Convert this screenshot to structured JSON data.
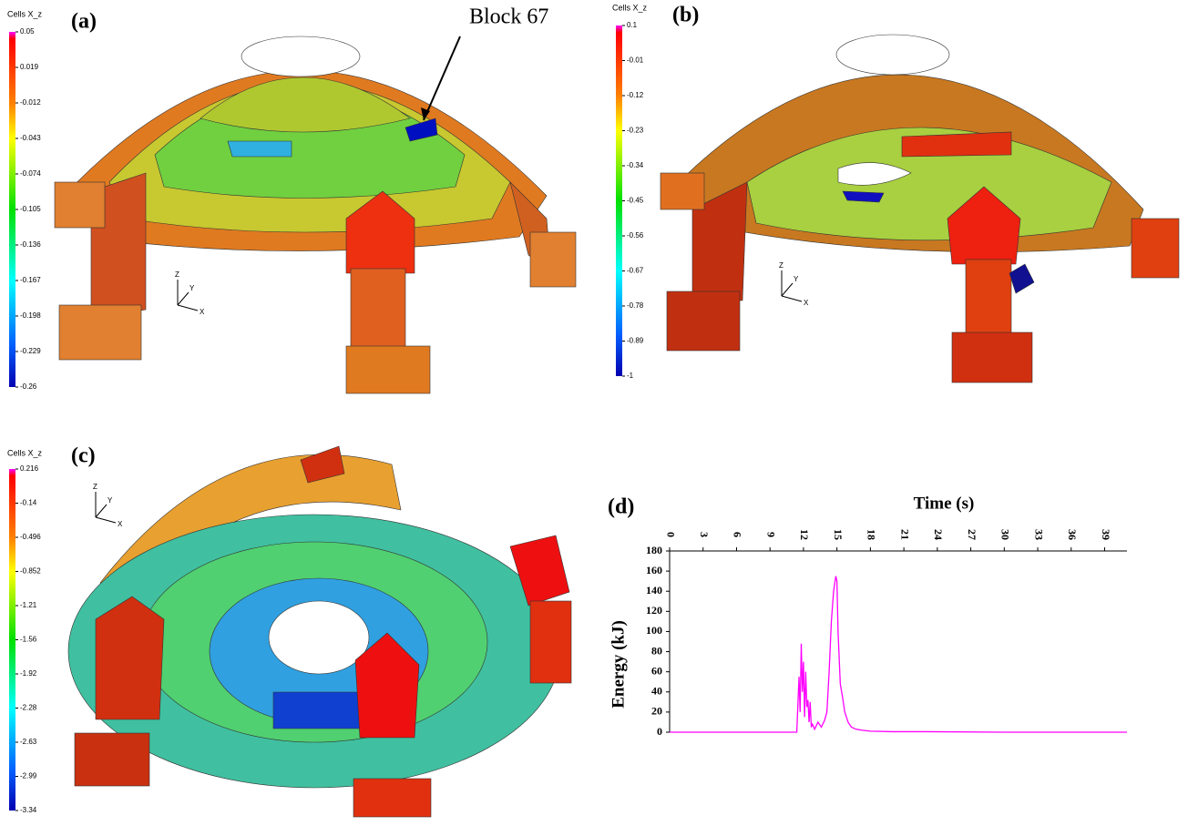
{
  "panels": [
    {
      "label": "(a)",
      "annotation": "Block 67",
      "triad": [
        "Z",
        "Y",
        "X"
      ],
      "colorbar": {
        "title": "Cells X_z",
        "ticks": [
          "0.05",
          "0.019",
          "-0.012",
          "-0.043",
          "-0.074",
          "-0.105",
          "-0.136",
          "-0.167",
          "-0.198",
          "-0.229",
          "-0.26"
        ]
      }
    },
    {
      "label": "(b)",
      "triad": [
        "Z",
        "Y",
        "X"
      ],
      "colorbar": {
        "title": "Cells X_z",
        "ticks": [
          "0.1",
          "-0.01",
          "-0.12",
          "-0.23",
          "-0.34",
          "-0.45",
          "-0.56",
          "-0.67",
          "-0.78",
          "-0.89",
          "-1"
        ]
      }
    },
    {
      "label": "(c)",
      "triad": [
        "Z",
        "Y",
        "X"
      ],
      "colorbar": {
        "title": "Cells X_z",
        "ticks": [
          "0.216",
          "-0.14",
          "-0.496",
          "-0.852",
          "-1.21",
          "-1.56",
          "-1.92",
          "-2.28",
          "-2.63",
          "-2.99",
          "-3.34"
        ]
      }
    }
  ],
  "chart_data": {
    "type": "line",
    "panel_label": "(d)",
    "x_label": "Time (s)",
    "y_label": "Energy (kJ)",
    "x": [
      0,
      11.4,
      11.6,
      11.7,
      11.8,
      11.9,
      12.0,
      12.1,
      12.2,
      12.3,
      12.4,
      12.5,
      12.6,
      12.7,
      12.8,
      13.0,
      13.3,
      13.6,
      13.9,
      14.1,
      14.3,
      14.5,
      14.7,
      14.9,
      15.0,
      15.1,
      15.3,
      15.5,
      15.7,
      16.0,
      16.3,
      16.7,
      17.2,
      18,
      20,
      23,
      30,
      41
    ],
    "values": [
      0,
      0,
      55,
      20,
      88,
      40,
      70,
      15,
      60,
      25,
      32,
      10,
      30,
      5,
      8,
      3,
      10,
      5,
      12,
      20,
      60,
      110,
      140,
      155,
      150,
      100,
      48,
      35,
      20,
      10,
      5,
      3,
      2,
      1,
      0.5,
      0.5,
      0,
      0
    ],
    "color": "#ff00ff",
    "xlim": [
      0,
      41
    ],
    "xticks": [
      0,
      3,
      6,
      9,
      12,
      15,
      18,
      21,
      24,
      27,
      30,
      33,
      36,
      39
    ],
    "ylim": [
      0,
      180
    ],
    "yticks": [
      0,
      20,
      40,
      60,
      80,
      100,
      120,
      140,
      160,
      180
    ]
  }
}
